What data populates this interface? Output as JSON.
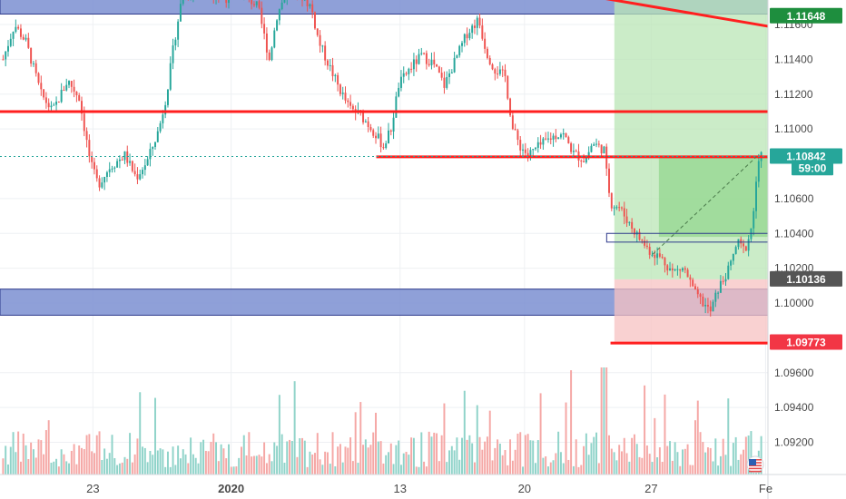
{
  "chart_data": {
    "type": "candlestick",
    "instrument_note": "",
    "y_axis": {
      "ticks": [
        "1.11600",
        "1.11400",
        "1.11200",
        "1.11000",
        "1.10600",
        "1.10400",
        "1.10200",
        "1.10000",
        "1.09600",
        "1.09400",
        "1.09200"
      ],
      "tick_values": [
        1.116,
        1.114,
        1.112,
        1.11,
        1.106,
        1.104,
        1.102,
        1.1,
        1.096,
        1.094,
        1.092
      ],
      "range": [
        1.09,
        1.118
      ]
    },
    "x_axis": {
      "ticks": [
        {
          "label": "23",
          "bold": false,
          "pos": 0.121
        },
        {
          "label": "2020",
          "bold": true,
          "pos": 0.301
        },
        {
          "label": "13",
          "bold": false,
          "pos": 0.521
        },
        {
          "label": "20",
          "bold": false,
          "pos": 0.683
        },
        {
          "label": "27",
          "bold": false,
          "pos": 0.848
        },
        {
          "label": "Fe",
          "bold": false,
          "pos": 0.997
        }
      ]
    },
    "price_labels": [
      {
        "id": "resistance-top",
        "text": "1.11648",
        "value": 1.11648,
        "bg": "#1e8e3e",
        "fg": "#ffffff"
      },
      {
        "id": "last-price",
        "text": "1.10842",
        "value": 1.10842,
        "bg": "#26a69a",
        "fg": "#ffffff"
      },
      {
        "id": "countdown",
        "text": "59:00",
        "value": 1.10775,
        "bg": "#26a69a",
        "fg": "#ffffff"
      },
      {
        "id": "entry",
        "text": "1.10136",
        "value": 1.10136,
        "bg": "#555555",
        "fg": "#ffffff"
      },
      {
        "id": "stop",
        "text": "1.09773",
        "value": 1.09773,
        "bg": "#f23645",
        "fg": "#ffffff"
      }
    ],
    "supply_zone": {
      "from": 1.1166,
      "to": 1.1179,
      "color": "#7b8fd1"
    },
    "demand_zone": {
      "from": 1.0993,
      "to": 1.1008,
      "color": "#7b8fd1"
    },
    "horizontal_lines": [
      {
        "value": 1.111,
        "from": 0.0,
        "color": "#ff1f1f"
      },
      {
        "value": 1.1084,
        "from": 0.49,
        "color": "#ff1f1f"
      },
      {
        "value": 1.0977,
        "from": 0.795,
        "color": "#ff1f1f"
      }
    ],
    "trend_line": {
      "from": [
        0.72,
        1.118
      ],
      "to": [
        1.0,
        1.1159
      ],
      "color": "#ff1f1f"
    },
    "long_position": {
      "start": 0.8,
      "entry": 1.10136,
      "target": 1.118,
      "stop": 1.09773
    },
    "colors": {
      "up": "#26a69a",
      "down": "#ef5350",
      "vol_up": "#8fd3c9",
      "vol_down": "#f5a7a5"
    }
  }
}
